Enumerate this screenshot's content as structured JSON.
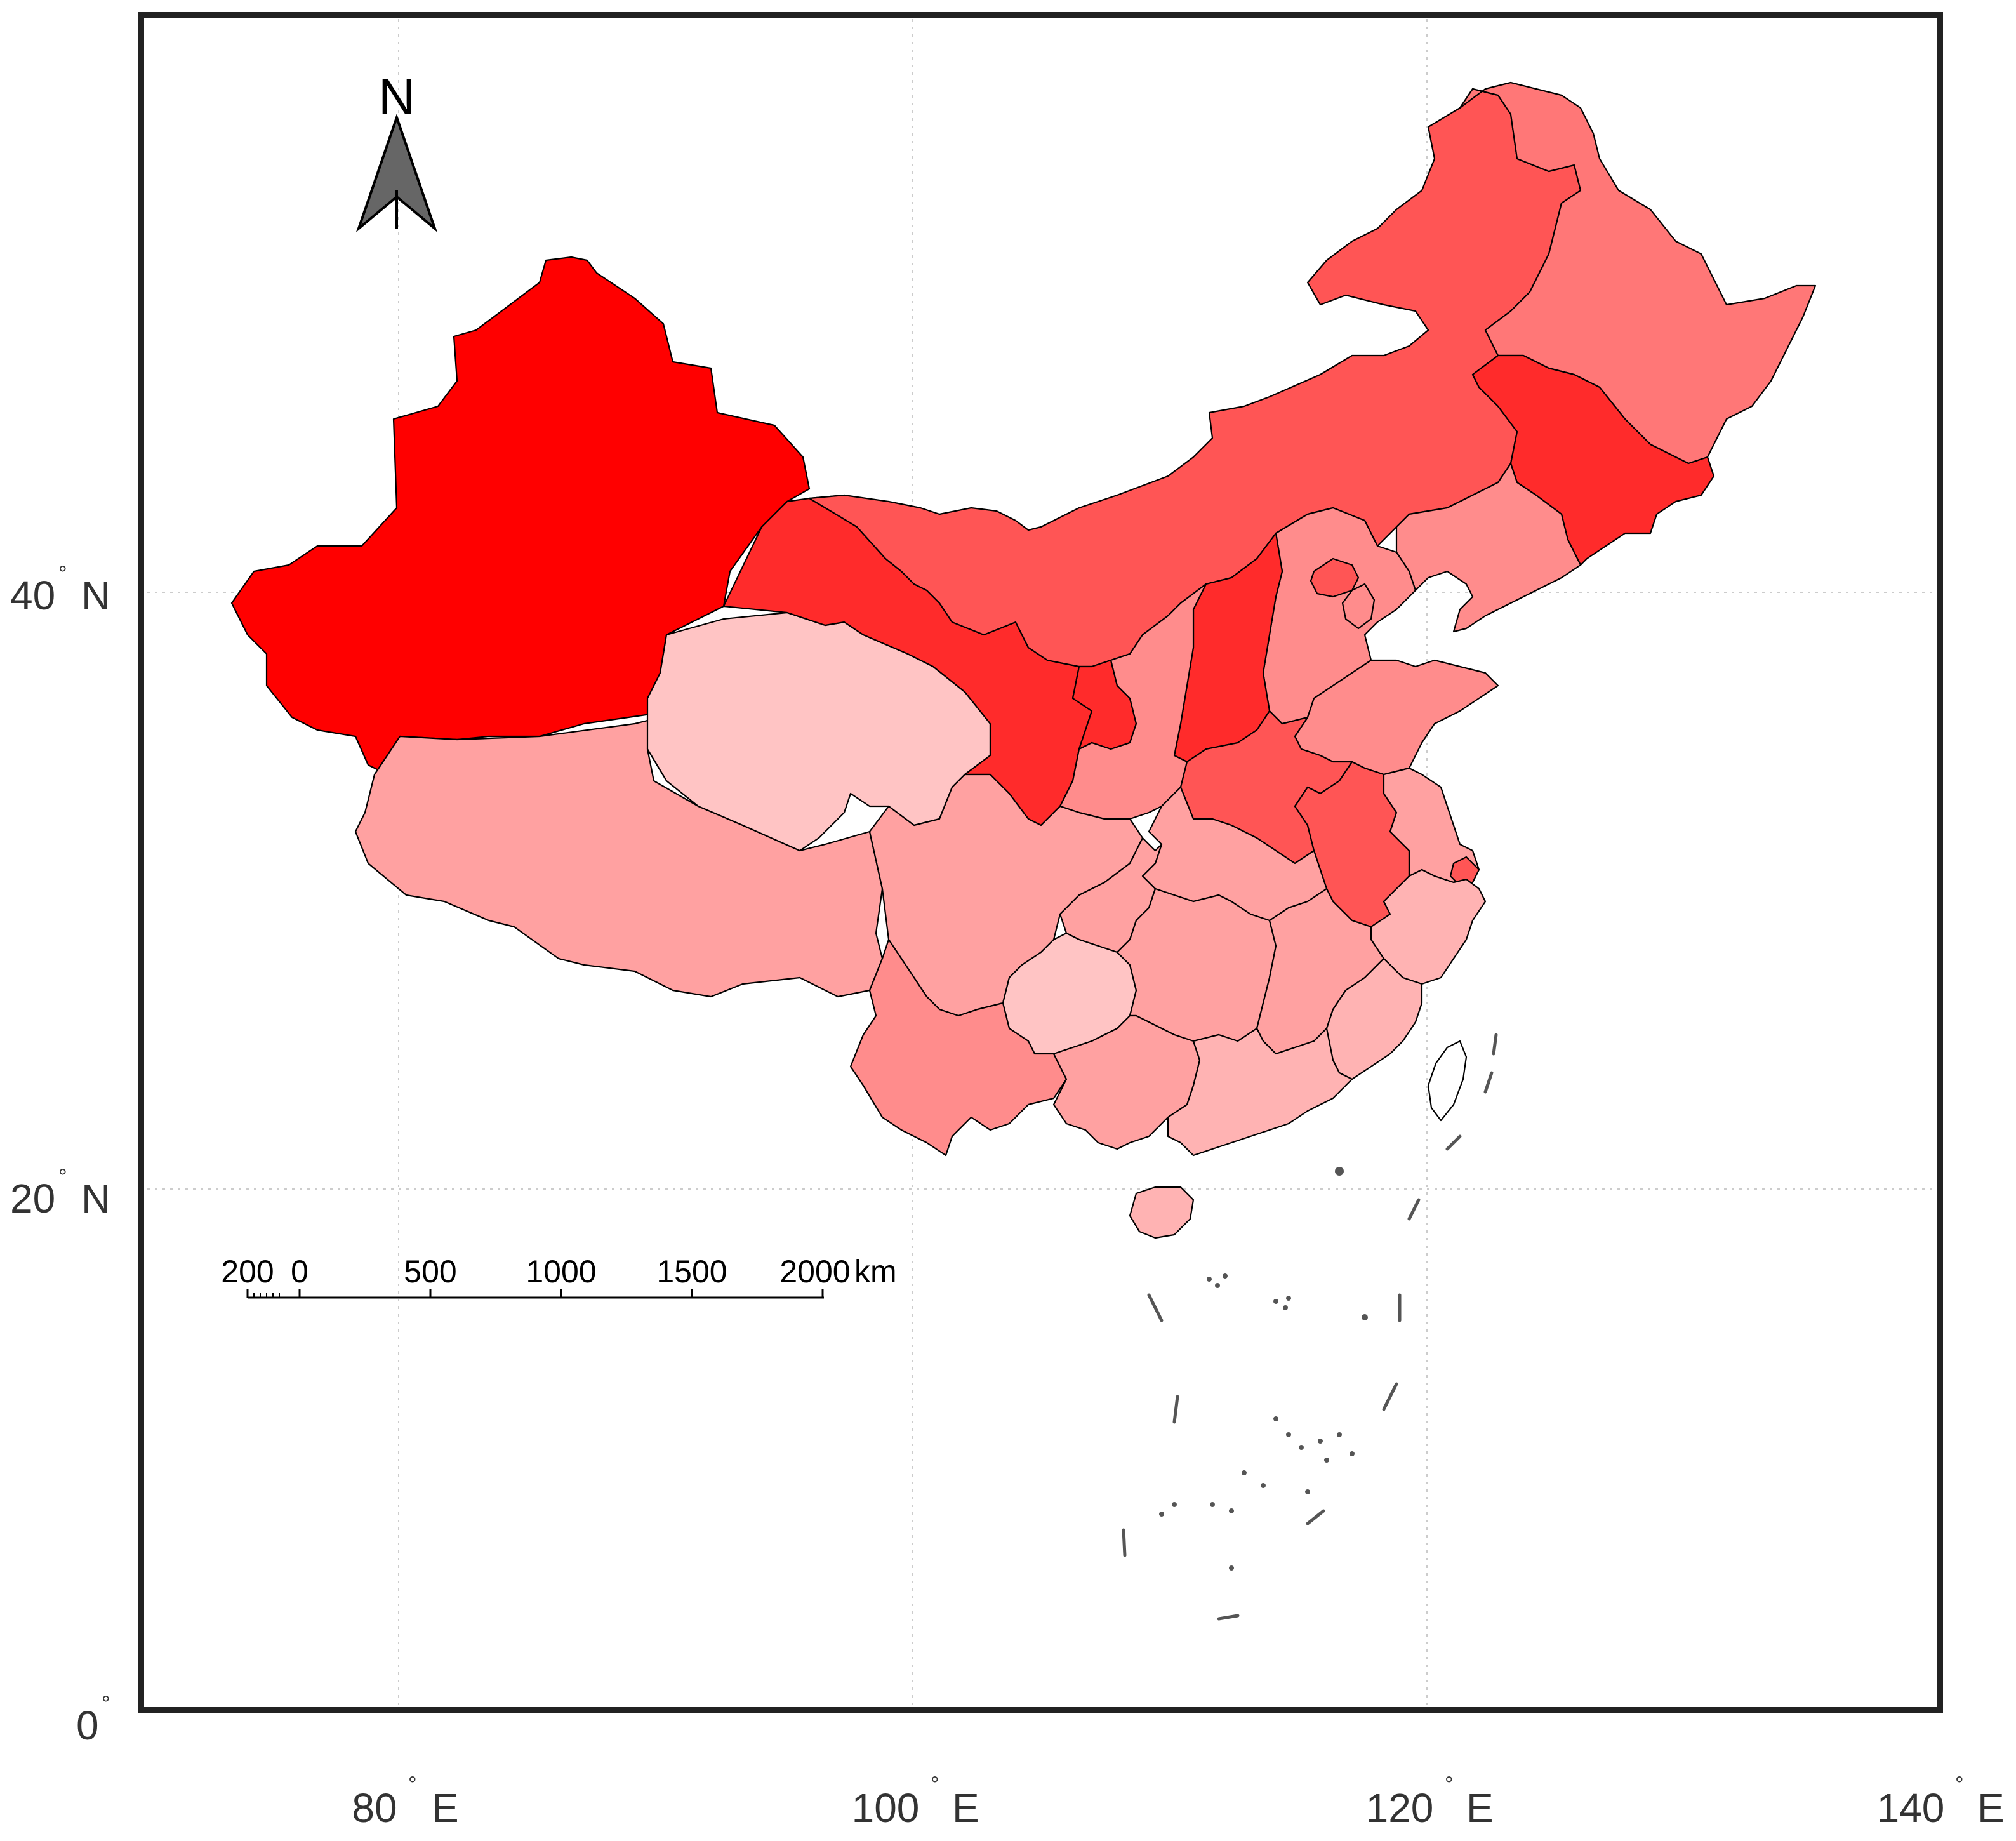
{
  "colors": {
    "frame": "#222222",
    "grid": "#cccccc",
    "border": "#000000",
    "arrow": "#666666",
    "scale": {
      "1": "#ff0000",
      "2": "#ff2b2b",
      "3": "#ff5555",
      "4": "#ff7777",
      "5": "#ff8c8c",
      "6": "#ffa1a1",
      "7": "#ffb3b3",
      "8": "#ffc4c4"
    }
  },
  "map": {
    "x_axis": {
      "ticks": [
        {
          "lon": 80,
          "num": "80",
          "suffix": "E"
        },
        {
          "lon": 100,
          "num": "100",
          "suffix": "E"
        },
        {
          "lon": 120,
          "num": "120",
          "suffix": "E"
        },
        {
          "lon": 140,
          "num": "140",
          "suffix": "E"
        }
      ]
    },
    "y_axis": {
      "ticks": [
        {
          "lat": 40,
          "num": "40",
          "suffix": "N"
        },
        {
          "lat": 20,
          "num": "20",
          "suffix": "N"
        },
        {
          "lat": 0,
          "num": "0",
          "suffix": ""
        }
      ]
    },
    "extent": {
      "lon": [
        70,
        140
      ],
      "lat": [
        0,
        57
      ]
    },
    "grid": true,
    "north_arrow": {
      "label": "N"
    },
    "scale_bar": {
      "labels": [
        "200",
        "0",
        "500",
        "1000",
        "1500",
        "2000"
      ],
      "unit": "km"
    },
    "regions": [
      {
        "id": "xinjiang",
        "level": 1
      },
      {
        "id": "tibet",
        "level": 6
      },
      {
        "id": "qinghai",
        "level": 8
      },
      {
        "id": "gansu",
        "level": 2
      },
      {
        "id": "inner-mongolia",
        "level": 3
      },
      {
        "id": "heilongjiang",
        "level": 4
      },
      {
        "id": "jilin",
        "level": 2
      },
      {
        "id": "liaoning",
        "level": 5
      },
      {
        "id": "hebei",
        "level": 5
      },
      {
        "id": "beijing",
        "level": 3
      },
      {
        "id": "tianjin",
        "level": 5
      },
      {
        "id": "shanxi",
        "level": 2
      },
      {
        "id": "ningxia",
        "level": 2
      },
      {
        "id": "shaanxi",
        "level": 5
      },
      {
        "id": "shandong",
        "level": 5
      },
      {
        "id": "henan",
        "level": 3
      },
      {
        "id": "anhui",
        "level": 3
      },
      {
        "id": "jiangsu",
        "level": 6
      },
      {
        "id": "shanghai",
        "level": 3
      },
      {
        "id": "zhejiang",
        "level": 7
      },
      {
        "id": "hubei",
        "level": 6
      },
      {
        "id": "sichuan",
        "level": 6
      },
      {
        "id": "chongqing",
        "level": 6
      },
      {
        "id": "guizhou",
        "level": 8
      },
      {
        "id": "hunan",
        "level": 6
      },
      {
        "id": "jiangxi",
        "level": 6
      },
      {
        "id": "fujian",
        "level": 7
      },
      {
        "id": "yunnan",
        "level": 5
      },
      {
        "id": "guangxi",
        "level": 6
      },
      {
        "id": "guangdong",
        "level": 7
      },
      {
        "id": "hainan",
        "level": 7
      },
      {
        "id": "taiwan",
        "level": 0
      }
    ]
  }
}
